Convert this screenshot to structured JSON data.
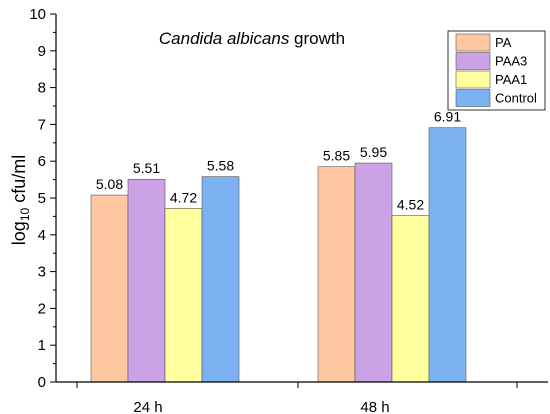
{
  "chart_data": {
    "type": "bar",
    "title_italic": "Candida albicans",
    "title_rest": " growth",
    "ylabel_main": "log",
    "ylabel_sub": "10",
    "ylabel_unit": " cfu/ml",
    "categories": [
      "24 h",
      "48 h"
    ],
    "ylim": [
      0,
      10
    ],
    "yticks": [
      "0",
      "1",
      "2",
      "3",
      "4",
      "5",
      "6",
      "7",
      "8",
      "9",
      "10"
    ],
    "legend_position": "top-right",
    "grid": false,
    "series": [
      {
        "name": "PA",
        "color": "#FFC8A0",
        "values": [
          5.08,
          5.85
        ],
        "labels": [
          "5.08",
          "5.85"
        ]
      },
      {
        "name": "PAA3",
        "color": "#CBA2E6",
        "values": [
          5.51,
          5.95
        ],
        "labels": [
          "5.51",
          "5.95"
        ]
      },
      {
        "name": "PAA1",
        "color": "#FFFF9E",
        "values": [
          4.72,
          4.52
        ],
        "labels": [
          "4.72",
          "4.52"
        ]
      },
      {
        "name": "Control",
        "color": "#7CB2F2",
        "values": [
          5.58,
          6.91
        ],
        "labels": [
          "5.58",
          "6.91"
        ]
      }
    ]
  }
}
